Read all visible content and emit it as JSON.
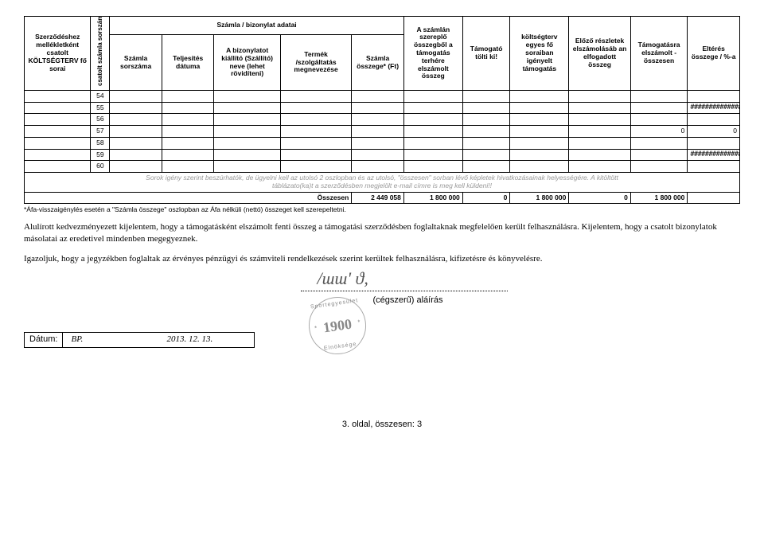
{
  "table": {
    "group_header": "Számla / bizonylat adatai",
    "headers": {
      "h1": "Szerződéshez mellékletként csatolt KÖLTSÉGTERV fő sorai",
      "h2": "csatolt számla sorszáma",
      "h3": "Számla sorszáma",
      "h4": "Teljesítés dátuma",
      "h5": "A bizonylatot kiállító (Szállító) neve (lehet rövidíteni)",
      "h6": "Termék /szolgáltatás megnevezése",
      "h7": "Számla összege* (Ft)",
      "h8": "A számlán szereplő összegből a támogatás terhére elszámolt összeg",
      "h9": "Támogató tölti ki!",
      "h10": "költségterv egyes fő soraiban igényelt támogatás",
      "h11": "Előző részletek elszámolásáb an elfogadott összeg",
      "h12": "Támogatásra elszámolt - összesen",
      "h13": "Eltérés összege / %-a"
    },
    "rows": [
      {
        "n": "54",
        "c7": "",
        "c8": "",
        "c9": "",
        "c10": "",
        "c11": "",
        "c12": "",
        "c13": ""
      },
      {
        "n": "55",
        "c7": "",
        "c8": "",
        "c9": "",
        "c10": "",
        "c11": "",
        "c12": "",
        "c13": "################"
      },
      {
        "n": "56",
        "c7": "",
        "c8": "",
        "c9": "",
        "c10": "",
        "c11": "",
        "c12": "",
        "c13": ""
      },
      {
        "n": "57",
        "c7": "",
        "c8": "",
        "c9": "",
        "c10": "",
        "c11": "",
        "c12": "0",
        "c13": "0"
      },
      {
        "n": "58",
        "c7": "",
        "c8": "",
        "c9": "",
        "c10": "",
        "c11": "",
        "c12": "",
        "c13": ""
      },
      {
        "n": "59",
        "c7": "",
        "c8": "",
        "c9": "",
        "c10": "",
        "c11": "",
        "c12": "",
        "c13": "################"
      },
      {
        "n": "60",
        "c7": "",
        "c8": "",
        "c9": "",
        "c10": "",
        "c11": "",
        "c12": "",
        "c13": ""
      }
    ],
    "grey_note_1": "Sorok igény szerint beszúrhatók, de ügyelni kell az utolsó 2 oszlopban és az utolsó, \"összesen\" sorban lévő képletek hivatkozásainak helyességére. A kitöltött",
    "grey_note_2": "táblázato(ka)t a szerződésben megjelölt e-mail címre is meg kell küldeni!!",
    "total_label": "Összesen",
    "totals": {
      "c7": "2 449 058",
      "c8": "1 800 000",
      "c9": "0",
      "c10": "1 800 000",
      "c11": "0",
      "c12": "1 800 000",
      "c13": ""
    }
  },
  "footnote": "*Áfa-visszaigénylés esetén a \"Számla összege\" oszlopban az Áfa nélküli (nettó) összeget kell szerepeltetni.",
  "declaration_p1": "Alulírott kedvezményezett kijelentem, hogy a támogatásként elszámolt fenti összeg a támogatási szerződésben foglaltaknak megfelelően került felhasználásra. Kijelentem, hogy a csatolt bizonylatok másolatai az eredetivel mindenben megegyeznek.",
  "declaration_p2": "Igazoljuk, hogy a jegyzékben foglaltak az érvényes pénzügyi és számviteli rendelkezések szerint kerültek felhasználásra, kifizetésre és könyvelésre.",
  "date_label": "Dátum:",
  "date_city": "BP.",
  "date_value": "2013. 12. 13.",
  "signature_label": "(cégszerű) aláírás",
  "stamp_year": "1900",
  "stamp_top": "Sportegyesület",
  "stamp_bot": "Elnöksége",
  "page_footer": "3. oldal, összesen: 3",
  "colwidths": [
    "70",
    "20",
    "55",
    "55",
    "70",
    "75",
    "55",
    "62",
    "50",
    "62",
    "65",
    "60",
    "55"
  ]
}
